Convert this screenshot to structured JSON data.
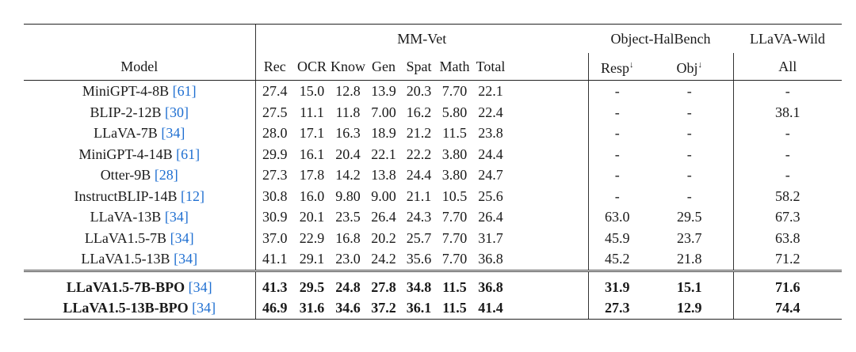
{
  "header": {
    "model": "Model",
    "groups": [
      "MM-Vet",
      "Object-HalBench",
      "LLaVA-Wild"
    ],
    "mmvet_cols": [
      "Rec",
      "OCR",
      "Know",
      "Gen",
      "Spat",
      "Math",
      "Total"
    ],
    "halbench_cols": [
      "Resp",
      "Obj"
    ],
    "halbench_marker": "↓",
    "wild_cols": [
      "All"
    ]
  },
  "rows": [
    {
      "model": "MiniGPT-4-8B",
      "cite": "[61]",
      "v": [
        "27.4",
        "15.0",
        "12.8",
        "13.9",
        "20.3",
        "7.70",
        "22.1",
        "-",
        "-",
        "-"
      ]
    },
    {
      "model": "BLIP-2-12B",
      "cite": "[30]",
      "v": [
        "27.5",
        "11.1",
        "11.8",
        "7.00",
        "16.2",
        "5.80",
        "22.4",
        "-",
        "-",
        "38.1"
      ]
    },
    {
      "model": "LLaVA-7B",
      "cite": "[34]",
      "v": [
        "28.0",
        "17.1",
        "16.3",
        "18.9",
        "21.2",
        "11.5",
        "23.8",
        "-",
        "-",
        "-"
      ]
    },
    {
      "model": "MiniGPT-4-14B",
      "cite": "[61]",
      "v": [
        "29.9",
        "16.1",
        "20.4",
        "22.1",
        "22.2",
        "3.80",
        "24.4",
        "-",
        "-",
        "-"
      ]
    },
    {
      "model": "Otter-9B",
      "cite": "[28]",
      "v": [
        "27.3",
        "17.8",
        "14.2",
        "13.8",
        "24.4",
        "3.80",
        "24.7",
        "-",
        "-",
        "-"
      ]
    },
    {
      "model": "InstructBLIP-14B",
      "cite": "[12]",
      "v": [
        "30.8",
        "16.0",
        "9.80",
        "9.00",
        "21.1",
        "10.5",
        "25.6",
        "-",
        "-",
        "58.2"
      ]
    },
    {
      "model": "LLaVA-13B",
      "cite": "[34]",
      "v": [
        "30.9",
        "20.1",
        "23.5",
        "26.4",
        "24.3",
        "7.70",
        "26.4",
        "63.0",
        "29.5",
        "67.3"
      ]
    },
    {
      "model": "LLaVA1.5-7B",
      "cite": "[34]",
      "v": [
        "37.0",
        "22.9",
        "16.8",
        "20.2",
        "25.7",
        "7.70",
        "31.7",
        "45.9",
        "23.7",
        "63.8"
      ]
    },
    {
      "model": "LLaVA1.5-13B",
      "cite": "[34]",
      "v": [
        "41.1",
        "29.1",
        "23.0",
        "24.2",
        "35.6",
        "7.70",
        "36.8",
        "45.2",
        "21.8",
        "71.2"
      ]
    }
  ],
  "ours": [
    {
      "model": "LLaVA1.5-7B-BPO",
      "cite": "[34]",
      "v": [
        "41.3",
        "29.5",
        "24.8",
        "27.8",
        "34.8",
        "11.5",
        "36.8",
        "31.9",
        "15.1",
        "71.6"
      ]
    },
    {
      "model": "LLaVA1.5-13B-BPO",
      "cite": "[34]",
      "v": [
        "46.9",
        "31.6",
        "34.6",
        "37.2",
        "36.1",
        "11.5",
        "41.4",
        "27.3",
        "12.9",
        "74.4"
      ]
    }
  ],
  "colors": {
    "citation": "#1f6fd1",
    "text": "#1a1a1a"
  }
}
